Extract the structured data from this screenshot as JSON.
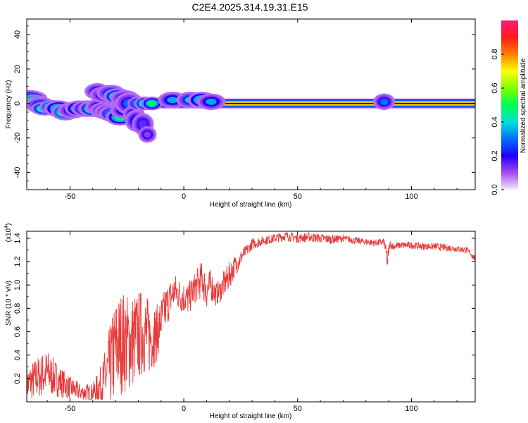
{
  "title": "C2E4.2025.314.19.31.E15",
  "colors": {
    "line": "#e83a3a",
    "background": "#ffffff",
    "baseline": "#000000"
  },
  "chart_data": [
    {
      "type": "heatmap",
      "xlabel": "Height of straight line (km)",
      "ylabel": "Frequency (Hz)",
      "xlim": [
        -69,
        128
      ],
      "ylim": [
        -50,
        49
      ],
      "xticks": [
        -50,
        0,
        50,
        100
      ],
      "yticks": [
        -40,
        -20,
        0,
        20,
        40
      ],
      "colorbar": {
        "label": "Normalized spectral amplitude",
        "range": [
          0,
          1
        ],
        "ticks": [
          0.0,
          0.2,
          0.4,
          0.6,
          0.8
        ]
      },
      "continuous_band": {
        "x_start": -12,
        "x_end": 128,
        "frequency": 0
      },
      "blobs": [
        {
          "x": -68,
          "y": 3,
          "amp": 0.45,
          "w": 5,
          "h": 3
        },
        {
          "x": -66,
          "y": 1,
          "amp": 0.65,
          "w": 4,
          "h": 2.5
        },
        {
          "x": -63,
          "y": -1,
          "amp": 0.4,
          "w": 4,
          "h": 3
        },
        {
          "x": -61,
          "y": -3,
          "amp": 0.55,
          "w": 4,
          "h": 2.5
        },
        {
          "x": -58,
          "y": -2,
          "amp": 0.6,
          "w": 3.5,
          "h": 2.5
        },
        {
          "x": -55,
          "y": -3,
          "amp": 0.5,
          "w": 4,
          "h": 3
        },
        {
          "x": -52,
          "y": -5,
          "amp": 0.6,
          "w": 4,
          "h": 3
        },
        {
          "x": -49,
          "y": -4,
          "amp": 0.35,
          "w": 4,
          "h": 3
        },
        {
          "x": -46,
          "y": -3,
          "amp": 0.5,
          "w": 4,
          "h": 3
        },
        {
          "x": -43,
          "y": -3,
          "amp": 0.45,
          "w": 4,
          "h": 3
        },
        {
          "x": -40,
          "y": -3,
          "amp": 0.55,
          "w": 4,
          "h": 3
        },
        {
          "x": -37,
          "y": -2,
          "amp": 0.35,
          "w": 4,
          "h": 3
        },
        {
          "x": -35,
          "y": -4,
          "amp": 0.4,
          "w": 4,
          "h": 3
        },
        {
          "x": -33,
          "y": -5,
          "amp": 0.3,
          "w": 4,
          "h": 3
        },
        {
          "x": -31,
          "y": -6,
          "amp": 0.45,
          "w": 4,
          "h": 3
        },
        {
          "x": -28,
          "y": -8,
          "amp": 0.5,
          "w": 4,
          "h": 3
        },
        {
          "x": -26,
          "y": -4,
          "amp": 0.35,
          "w": 4,
          "h": 3
        },
        {
          "x": -38,
          "y": 7,
          "amp": 0.25,
          "w": 3.5,
          "h": 3
        },
        {
          "x": -35,
          "y": 5,
          "amp": 0.3,
          "w": 4,
          "h": 3
        },
        {
          "x": -32,
          "y": 6,
          "amp": 0.4,
          "w": 4,
          "h": 3
        },
        {
          "x": -29,
          "y": 4,
          "amp": 0.55,
          "w": 4,
          "h": 3
        },
        {
          "x": -26,
          "y": 3,
          "amp": 0.3,
          "w": 4,
          "h": 3
        },
        {
          "x": -24,
          "y": 0,
          "amp": 0.3,
          "w": 4,
          "h": 4
        },
        {
          "x": -22,
          "y": -6,
          "amp": 0.2,
          "w": 3,
          "h": 3
        },
        {
          "x": -21,
          "y": -10,
          "amp": 0.2,
          "w": 3,
          "h": 4
        },
        {
          "x": -20,
          "y": 0,
          "amp": 0.45,
          "w": 3,
          "h": 2.5
        },
        {
          "x": -18,
          "y": -12,
          "amp": 0.15,
          "w": 3,
          "h": 4
        },
        {
          "x": -17,
          "y": 0,
          "amp": 0.55,
          "w": 3,
          "h": 2.5
        },
        {
          "x": -16,
          "y": -18,
          "amp": 0.12,
          "w": 2.5,
          "h": 3
        },
        {
          "x": -14,
          "y": 0,
          "amp": 0.5,
          "w": 3,
          "h": 2.5
        },
        {
          "x": -5,
          "y": 2,
          "amp": 0.35,
          "w": 4,
          "h": 3
        },
        {
          "x": 3,
          "y": 2,
          "amp": 0.4,
          "w": 4,
          "h": 3
        },
        {
          "x": 8,
          "y": 2,
          "amp": 0.5,
          "w": 4,
          "h": 3
        },
        {
          "x": 12,
          "y": 1,
          "amp": 0.35,
          "w": 4,
          "h": 3
        },
        {
          "x": 88,
          "y": 1,
          "amp": 0.3,
          "w": 3,
          "h": 3
        }
      ]
    },
    {
      "type": "line",
      "xlabel": "Height of straight line (km)",
      "ylabel": "SNR (10 * v/v)",
      "y_multiplier": "(x10",
      "y_multiplier_exp": "4",
      "y_multiplier_close": ")",
      "xlim": [
        -69,
        128
      ],
      "ylim": [
        0.0,
        1.46
      ],
      "xticks": [
        -50,
        0,
        50,
        100
      ],
      "yticks": [
        0.2,
        0.4,
        0.6,
        0.8,
        1.0,
        1.2,
        1.4
      ],
      "series": [
        {
          "name": "SNR",
          "x": [
            -69,
            -65,
            -60,
            -55,
            -50,
            -45,
            -40,
            -36,
            -34,
            -32,
            -30,
            -27,
            -24,
            -21,
            -18,
            -15,
            -12,
            -10,
            -7,
            -4,
            -1,
            2,
            5,
            8,
            10,
            12,
            14,
            16,
            18,
            20,
            22,
            24,
            26,
            28,
            30,
            35,
            40,
            45,
            50,
            55,
            60,
            65,
            70,
            75,
            80,
            85,
            88,
            89.5,
            90.5,
            92,
            95,
            100,
            105,
            110,
            115,
            120,
            124,
            126,
            128
          ],
          "values": [
            0.15,
            0.2,
            0.25,
            0.18,
            0.12,
            0.08,
            0.08,
            0.15,
            0.22,
            0.32,
            0.45,
            0.52,
            0.5,
            0.55,
            0.6,
            0.55,
            0.58,
            0.7,
            0.85,
            0.95,
            0.9,
            0.88,
            0.98,
            1.05,
            0.95,
            1.0,
            0.92,
            0.95,
            1.02,
            1.08,
            1.15,
            1.2,
            1.26,
            1.3,
            1.35,
            1.38,
            1.4,
            1.42,
            1.4,
            1.41,
            1.4,
            1.39,
            1.4,
            1.38,
            1.37,
            1.36,
            1.37,
            1.2,
            1.35,
            1.33,
            1.34,
            1.34,
            1.33,
            1.33,
            1.32,
            1.31,
            1.3,
            1.27,
            1.22
          ],
          "noise": [
            0.15,
            0.18,
            0.2,
            0.14,
            0.1,
            0.07,
            0.08,
            0.18,
            0.3,
            0.38,
            0.45,
            0.45,
            0.42,
            0.4,
            0.38,
            0.32,
            0.25,
            0.2,
            0.18,
            0.15,
            0.14,
            0.14,
            0.14,
            0.16,
            0.16,
            0.14,
            0.1,
            0.1,
            0.12,
            0.12,
            0.1,
            0.08,
            0.06,
            0.05,
            0.05,
            0.04,
            0.04,
            0.04,
            0.04,
            0.04,
            0.04,
            0.04,
            0.03,
            0.03,
            0.03,
            0.03,
            0.03,
            0.1,
            0.03,
            0.03,
            0.03,
            0.03,
            0.03,
            0.03,
            0.03,
            0.03,
            0.03,
            0.03,
            0.03
          ]
        }
      ]
    }
  ]
}
